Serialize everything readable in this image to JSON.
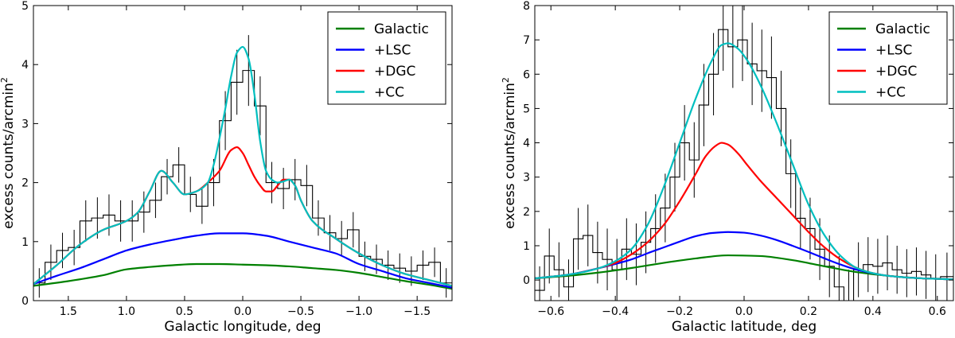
{
  "chart_data": [
    {
      "type": "line",
      "title": "",
      "xlabel": "Galactic longitude, deg",
      "ylabel": "excess counts/arcmin",
      "ylabel_superscript": "2",
      "xlim": [
        1.8,
        -1.8
      ],
      "ylim": [
        0,
        5
      ],
      "x_ticks": [
        1.5,
        1.0,
        0.5,
        0.0,
        -0.5,
        -1.0,
        -1.5
      ],
      "x_tick_labels": [
        "1.5",
        "1.0",
        "0.5",
        "0.0",
        "−0.5",
        "−1.0",
        "−1.5"
      ],
      "y_ticks": [
        0,
        1,
        2,
        3,
        4,
        5
      ],
      "y_tick_labels": [
        "0",
        "1",
        "2",
        "3",
        "4",
        "5"
      ],
      "grid": false,
      "legend_position": "top-right",
      "histogram": {
        "name": "data",
        "color": "#000000",
        "edges": [
          1.8,
          1.7,
          1.6,
          1.5,
          1.4,
          1.3,
          1.2,
          1.1,
          1.0,
          0.9,
          0.8,
          0.7,
          0.6,
          0.5,
          0.4,
          0.3,
          0.2,
          0.1,
          0.0,
          -0.1,
          -0.2,
          -0.3,
          -0.4,
          -0.5,
          -0.6,
          -0.7,
          -0.8,
          -0.9,
          -1.0,
          -1.1,
          -1.2,
          -1.3,
          -1.4,
          -1.5,
          -1.6,
          -1.7,
          -1.8
        ],
        "values": [
          0.3,
          0.65,
          0.85,
          0.9,
          1.35,
          1.4,
          1.45,
          1.35,
          1.35,
          1.5,
          1.7,
          2.1,
          2.3,
          1.8,
          1.6,
          2.0,
          3.05,
          3.7,
          3.9,
          3.3,
          2.0,
          1.9,
          2.05,
          1.95,
          1.4,
          1.15,
          1.05,
          1.2,
          0.75,
          0.7,
          0.6,
          0.55,
          0.5,
          0.6,
          0.65,
          0.3
        ],
        "errors": [
          0.25,
          0.3,
          0.3,
          0.3,
          0.35,
          0.35,
          0.35,
          0.35,
          0.35,
          0.35,
          0.3,
          0.3,
          0.3,
          0.3,
          0.3,
          0.4,
          0.5,
          0.55,
          0.6,
          0.5,
          0.35,
          0.35,
          0.35,
          0.35,
          0.3,
          0.3,
          0.3,
          0.3,
          0.25,
          0.25,
          0.25,
          0.25,
          0.25,
          0.25,
          0.25,
          0.25
        ]
      },
      "series": [
        {
          "name": "Galactic",
          "color": "#008000",
          "x": [
            1.8,
            1.5,
            1.2,
            1.0,
            0.8,
            0.6,
            0.4,
            0.2,
            0.0,
            -0.2,
            -0.4,
            -0.6,
            -0.8,
            -1.0,
            -1.2,
            -1.4,
            -1.6,
            -1.8
          ],
          "y": [
            0.25,
            0.33,
            0.43,
            0.53,
            0.57,
            0.6,
            0.62,
            0.62,
            0.61,
            0.6,
            0.58,
            0.55,
            0.52,
            0.47,
            0.4,
            0.33,
            0.27,
            0.2
          ]
        },
        {
          "name": "+LSC",
          "color": "#0000ff",
          "x": [
            1.8,
            1.6,
            1.4,
            1.2,
            1.0,
            0.8,
            0.6,
            0.4,
            0.2,
            0.0,
            -0.2,
            -0.4,
            -0.6,
            -0.8,
            -1.0,
            -1.2,
            -1.4,
            -1.6,
            -1.8
          ],
          "y": [
            0.28,
            0.42,
            0.55,
            0.7,
            0.85,
            0.95,
            1.03,
            1.1,
            1.14,
            1.14,
            1.1,
            1.0,
            0.9,
            0.8,
            0.62,
            0.5,
            0.38,
            0.3,
            0.22
          ]
        },
        {
          "name": "+DGC",
          "color": "#ff0000",
          "x": [
            1.8,
            1.6,
            1.4,
            1.2,
            1.0,
            0.9,
            0.8,
            0.7,
            0.6,
            0.5,
            0.4,
            0.3,
            0.2,
            0.1,
            0.05,
            0.0,
            -0.05,
            -0.1,
            -0.15,
            -0.2,
            -0.25,
            -0.3,
            -0.35,
            -0.4,
            -0.45,
            -0.5,
            -0.6,
            -0.8,
            -1.0,
            -1.2,
            -1.4,
            -1.6,
            -1.8
          ],
          "y": [
            0.28,
            0.6,
            0.95,
            1.2,
            1.35,
            1.5,
            1.85,
            2.2,
            2.0,
            1.8,
            1.85,
            2.0,
            2.2,
            2.55,
            2.6,
            2.5,
            2.3,
            2.1,
            1.95,
            1.85,
            1.85,
            1.95,
            2.05,
            2.05,
            1.95,
            1.7,
            1.35,
            1.05,
            0.8,
            0.6,
            0.45,
            0.35,
            0.25
          ]
        },
        {
          "name": "+CC",
          "color": "#00bfbf",
          "x": [
            1.8,
            1.6,
            1.4,
            1.2,
            1.0,
            0.9,
            0.8,
            0.7,
            0.6,
            0.5,
            0.4,
            0.3,
            0.25,
            0.2,
            0.15,
            0.1,
            0.05,
            0.0,
            -0.05,
            -0.1,
            -0.15,
            -0.2,
            -0.25,
            -0.3,
            -0.35,
            -0.4,
            -0.45,
            -0.5,
            -0.6,
            -0.8,
            -1.0,
            -1.2,
            -1.4,
            -1.6,
            -1.8
          ],
          "y": [
            0.28,
            0.6,
            0.95,
            1.2,
            1.35,
            1.5,
            1.85,
            2.2,
            2.0,
            1.8,
            1.85,
            2.0,
            2.3,
            2.75,
            3.25,
            3.8,
            4.2,
            4.3,
            4.1,
            3.5,
            2.7,
            2.2,
            2.05,
            2.0,
            2.02,
            2.05,
            1.95,
            1.7,
            1.35,
            1.05,
            0.8,
            0.6,
            0.45,
            0.35,
            0.25
          ]
        }
      ]
    },
    {
      "type": "line",
      "title": "",
      "xlabel": "Galactic latitude, deg",
      "ylabel": "excess counts/arcmin",
      "ylabel_superscript": "2",
      "xlim": [
        -0.65,
        0.65
      ],
      "ylim": [
        -0.6,
        8
      ],
      "x_ticks": [
        -0.6,
        -0.4,
        -0.2,
        0.0,
        0.2,
        0.4,
        0.6
      ],
      "x_tick_labels": [
        "−0.6",
        "−0.4",
        "−0.2",
        "0.0",
        "0.2",
        "0.4",
        "0.6"
      ],
      "y_ticks": [
        0,
        1,
        2,
        3,
        4,
        5,
        6,
        7,
        8
      ],
      "y_tick_labels": [
        "0",
        "1",
        "2",
        "3",
        "4",
        "5",
        "6",
        "7",
        "8"
      ],
      "grid": false,
      "legend_position": "top-right",
      "histogram": {
        "name": "data",
        "color": "#000000",
        "edges": [
          -0.65,
          -0.62,
          -0.59,
          -0.56,
          -0.53,
          -0.5,
          -0.47,
          -0.44,
          -0.41,
          -0.38,
          -0.35,
          -0.32,
          -0.29,
          -0.26,
          -0.23,
          -0.2,
          -0.17,
          -0.14,
          -0.11,
          -0.08,
          -0.05,
          -0.02,
          0.01,
          0.04,
          0.07,
          0.1,
          0.13,
          0.16,
          0.19,
          0.22,
          0.25,
          0.28,
          0.31,
          0.34,
          0.37,
          0.4,
          0.43,
          0.46,
          0.49,
          0.52,
          0.55,
          0.58,
          0.61,
          0.65
        ],
        "values": [
          -0.3,
          0.7,
          0.3,
          -0.2,
          1.2,
          1.3,
          0.8,
          0.6,
          0.3,
          0.9,
          0.75,
          1.1,
          1.5,
          2.1,
          3.0,
          4.0,
          3.5,
          5.1,
          6.0,
          7.3,
          6.8,
          7.0,
          6.3,
          6.1,
          5.9,
          5.0,
          3.1,
          1.8,
          1.5,
          0.9,
          0.4,
          -0.2,
          -0.6,
          0.3,
          0.45,
          0.4,
          0.5,
          0.3,
          0.2,
          0.25,
          0.15,
          0.05,
          0.1
        ],
        "errors": [
          0.7,
          0.8,
          0.8,
          0.8,
          0.9,
          0.9,
          0.9,
          0.9,
          0.9,
          0.9,
          0.9,
          0.9,
          1.0,
          1.0,
          1.0,
          1.1,
          1.1,
          1.2,
          1.2,
          1.2,
          1.2,
          1.2,
          1.2,
          1.2,
          1.2,
          1.1,
          1.0,
          0.9,
          0.9,
          0.9,
          0.9,
          0.9,
          0.9,
          0.8,
          0.8,
          0.8,
          0.8,
          0.7,
          0.7,
          0.7,
          0.7,
          0.7,
          0.7
        ]
      },
      "series": [
        {
          "name": "Galactic",
          "color": "#008000",
          "x": [
            -0.65,
            -0.55,
            -0.45,
            -0.35,
            -0.25,
            -0.15,
            -0.05,
            0.05,
            0.15,
            0.25,
            0.35,
            0.45,
            0.55,
            0.65
          ],
          "y": [
            0.05,
            0.12,
            0.22,
            0.35,
            0.5,
            0.63,
            0.72,
            0.7,
            0.58,
            0.4,
            0.23,
            0.12,
            0.05,
            0.02
          ]
        },
        {
          "name": "+LSC",
          "color": "#0000ff",
          "x": [
            -0.65,
            -0.55,
            -0.45,
            -0.35,
            -0.3,
            -0.25,
            -0.2,
            -0.15,
            -0.1,
            -0.05,
            0.0,
            0.05,
            0.1,
            0.15,
            0.2,
            0.25,
            0.3,
            0.35,
            0.45,
            0.55,
            0.65
          ],
          "y": [
            0.05,
            0.15,
            0.35,
            0.6,
            0.78,
            0.95,
            1.12,
            1.28,
            1.37,
            1.4,
            1.38,
            1.3,
            1.17,
            1.0,
            0.82,
            0.63,
            0.45,
            0.3,
            0.12,
            0.05,
            0.02
          ]
        },
        {
          "name": "+DGC",
          "color": "#ff0000",
          "x": [
            -0.65,
            -0.55,
            -0.45,
            -0.4,
            -0.35,
            -0.3,
            -0.25,
            -0.2,
            -0.15,
            -0.12,
            -0.09,
            -0.07,
            -0.05,
            -0.02,
            0.01,
            0.05,
            0.1,
            0.15,
            0.2,
            0.25,
            0.3,
            0.35,
            0.4,
            0.45,
            0.55,
            0.65
          ],
          "y": [
            0.05,
            0.15,
            0.35,
            0.5,
            0.75,
            1.1,
            1.6,
            2.3,
            3.1,
            3.6,
            3.9,
            4.0,
            3.95,
            3.7,
            3.35,
            2.9,
            2.4,
            1.9,
            1.4,
            0.95,
            0.6,
            0.35,
            0.2,
            0.12,
            0.05,
            0.02
          ]
        },
        {
          "name": "+CC",
          "color": "#00bfbf",
          "x": [
            -0.65,
            -0.55,
            -0.45,
            -0.4,
            -0.35,
            -0.3,
            -0.25,
            -0.2,
            -0.15,
            -0.1,
            -0.07,
            -0.05,
            -0.02,
            0.01,
            0.05,
            0.1,
            0.15,
            0.2,
            0.25,
            0.3,
            0.35,
            0.4,
            0.45,
            0.55,
            0.65
          ],
          "y": [
            0.05,
            0.15,
            0.35,
            0.55,
            0.9,
            1.6,
            2.7,
            4.0,
            5.3,
            6.4,
            6.85,
            6.9,
            6.75,
            6.4,
            5.7,
            4.6,
            3.4,
            2.2,
            1.3,
            0.7,
            0.35,
            0.2,
            0.12,
            0.05,
            0.02
          ]
        }
      ]
    }
  ]
}
